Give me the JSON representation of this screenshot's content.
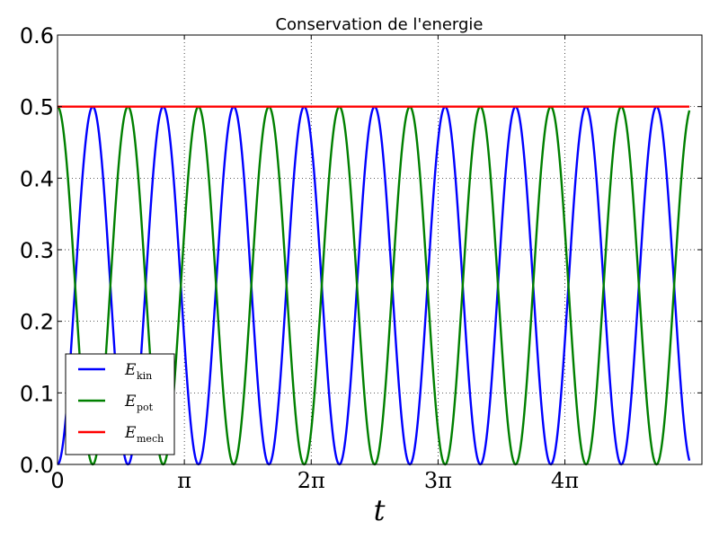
{
  "chart_data": {
    "type": "line",
    "title": "Conservation de l'energie",
    "xlabel": "t",
    "ylabel": "",
    "xlim": [
      0,
      15.96
    ],
    "ylim": [
      0,
      0.6
    ],
    "grid": true,
    "legend_placement": "lower-left",
    "yticks": [
      "0.0",
      "0.1",
      "0.2",
      "0.3",
      "0.4",
      "0.5",
      "0.6"
    ],
    "ytick_values": [
      0,
      0.1,
      0.2,
      0.3,
      0.4,
      0.5,
      0.6
    ],
    "xticks": [
      "0",
      "π",
      "2π",
      "3π",
      "4π"
    ],
    "xtick_values": [
      0,
      3.14159,
      6.28319,
      9.42478,
      12.56637
    ],
    "x_end": 15.65,
    "series": [
      {
        "name": "E",
        "name_sub": "kin",
        "color": "#0000ff",
        "formula": "0.5*sin^2(1.8*t)",
        "peak": 0.5,
        "omega": 1.8
      },
      {
        "name": "E",
        "name_sub": "pot",
        "color": "#008000",
        "formula": "0.5*cos^2(1.8*t)",
        "peak": 0.5,
        "omega": 1.8
      },
      {
        "name": "E",
        "name_sub": "mech",
        "color": "#ff0000",
        "formula": "0.5",
        "value": 0.5
      }
    ]
  }
}
